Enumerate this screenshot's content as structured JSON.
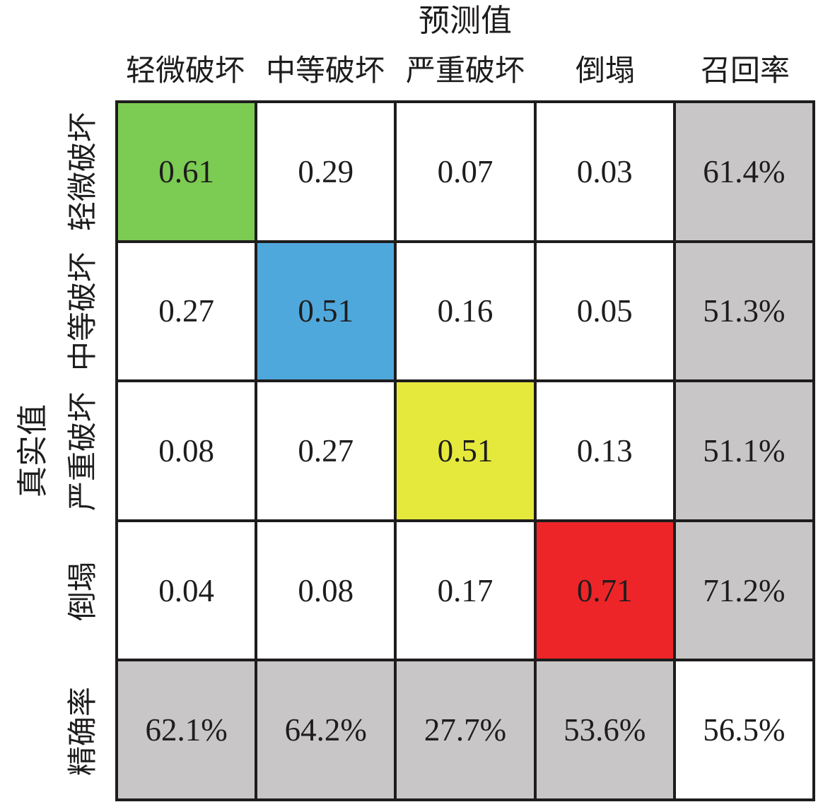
{
  "chart_data": {
    "type": "heatmap",
    "title": "预测值",
    "xlabel": "预测值",
    "ylabel": "真实值",
    "col_headers": [
      "轻微破坏",
      "中等破坏",
      "严重破坏",
      "倒塌",
      "召回率"
    ],
    "row_headers": [
      "轻微破坏",
      "中等破坏",
      "严重破坏",
      "倒塌",
      "精确率"
    ],
    "matrix": [
      [
        {
          "text": "0.61",
          "bg": "green"
        },
        {
          "text": "0.29",
          "bg": "white"
        },
        {
          "text": "0.07",
          "bg": "white"
        },
        {
          "text": "0.03",
          "bg": "white"
        },
        {
          "text": "61.4%",
          "bg": "gray"
        }
      ],
      [
        {
          "text": "0.27",
          "bg": "white"
        },
        {
          "text": "0.51",
          "bg": "blue"
        },
        {
          "text": "0.16",
          "bg": "white"
        },
        {
          "text": "0.05",
          "bg": "white"
        },
        {
          "text": "51.3%",
          "bg": "gray"
        }
      ],
      [
        {
          "text": "0.08",
          "bg": "white"
        },
        {
          "text": "0.27",
          "bg": "white"
        },
        {
          "text": "0.51",
          "bg": "yellow"
        },
        {
          "text": "0.13",
          "bg": "white"
        },
        {
          "text": "51.1%",
          "bg": "gray"
        }
      ],
      [
        {
          "text": "0.04",
          "bg": "white"
        },
        {
          "text": "0.08",
          "bg": "white"
        },
        {
          "text": "0.17",
          "bg": "white"
        },
        {
          "text": "0.71",
          "bg": "red"
        },
        {
          "text": "71.2%",
          "bg": "gray"
        }
      ],
      [
        {
          "text": "62.1%",
          "bg": "gray"
        },
        {
          "text": "64.2%",
          "bg": "gray"
        },
        {
          "text": "27.7%",
          "bg": "gray"
        },
        {
          "text": "53.6%",
          "bg": "gray"
        },
        {
          "text": "56.5%",
          "bg": "white"
        }
      ]
    ],
    "colors": {
      "green": "#7CCB52",
      "blue": "#4FA8DC",
      "yellow": "#E5E93B",
      "red": "#EE2528",
      "gray": "#C8C6C6",
      "white": "#FFFFFF",
      "grid_line": "#1E1C1D",
      "text": "#1E1C1D"
    },
    "grid": "on",
    "legend_position": "none"
  }
}
